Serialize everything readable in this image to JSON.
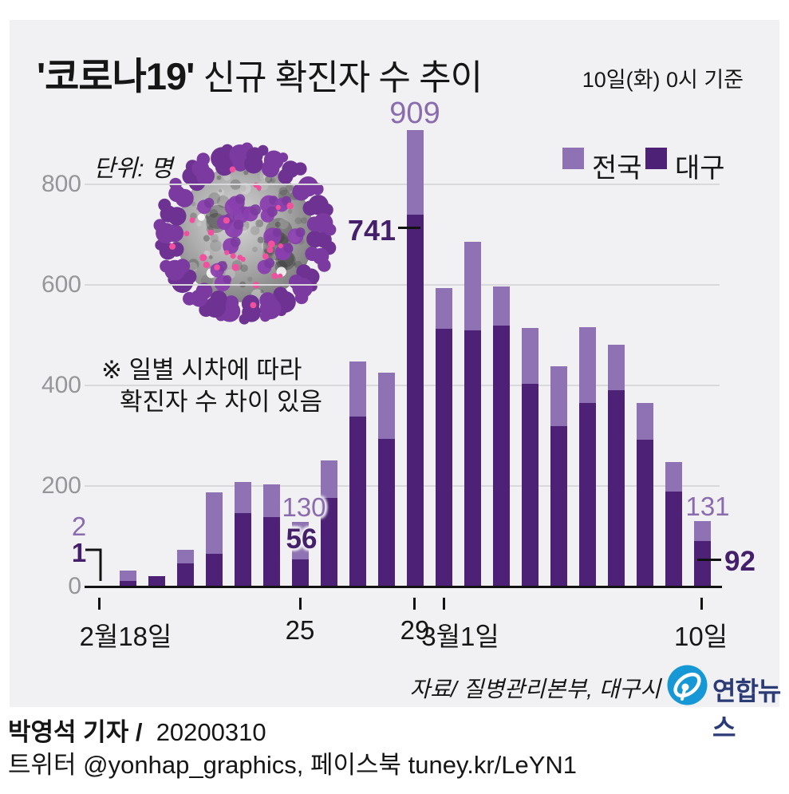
{
  "header": {
    "title_quoted": "'코로나19'",
    "title_rest": " 신규 확진자 수 추이",
    "subtitle": "10일(화) 0시 기준"
  },
  "unit_label": "단위: 명",
  "legend": [
    {
      "label": "전국",
      "color": "#8f72b4"
    },
    {
      "label": "대구",
      "color": "#4c2176"
    }
  ],
  "note": {
    "line1": "※ 일별 시차에 따라",
    "line2": "확진자 수 차이 있음"
  },
  "axis": {
    "y_labels": [
      "0",
      "200",
      "400",
      "600",
      "800"
    ],
    "x_labels": [
      "2월18일",
      "25",
      "29",
      "3월1일",
      "10일"
    ]
  },
  "chart_data": {
    "type": "bar",
    "subtype": "stacked-overlay",
    "title": "'코로나19' 신규 확진자 수 추이",
    "unit": "명",
    "categories": [
      "2/18",
      "2/19",
      "2/20",
      "2/21",
      "2/22",
      "2/23",
      "2/24",
      "2/25",
      "2/26",
      "2/27",
      "2/28",
      "2/29",
      "3/1",
      "3/2",
      "3/3",
      "3/4",
      "3/5",
      "3/6",
      "3/7",
      "3/8",
      "3/9",
      "3/10"
    ],
    "series": [
      {
        "name": "전국",
        "color": "#8f72b4",
        "note": "total bar height = nationwide new cases",
        "values": [
          2,
          34,
          23,
          74,
          189,
          210,
          205,
          130,
          253,
          449,
          427,
          909,
          595,
          687,
          599,
          516,
          440,
          518,
          483,
          367,
          249,
          131
        ]
      },
      {
        "name": "대구",
        "color": "#4c2176",
        "note": "dark lower segment = Daegu portion",
        "values": [
          1,
          13,
          23,
          47,
          66,
          147,
          139,
          56,
          178,
          339,
          296,
          741,
          514,
          511,
          520,
          405,
          321,
          367,
          392,
          294,
          190,
          92
        ]
      }
    ],
    "ylim": [
      0,
      950
    ],
    "y_ticks": [
      0,
      200,
      400,
      600,
      800
    ],
    "grid": true,
    "legend_position": "top-right",
    "x_tick_positions": [
      {
        "label": "2월18일",
        "index": 0
      },
      {
        "label": "25",
        "index": 7
      },
      {
        "label": "29",
        "index": 11
      },
      {
        "label": "3월1일",
        "index": 12
      },
      {
        "label": "10일",
        "index": 21
      }
    ],
    "value_labels": [
      {
        "date": "2월18일",
        "national": "2",
        "daegu": "1"
      },
      {
        "date": "2월25일",
        "national": "130",
        "daegu": "56"
      },
      {
        "date": "2월29일",
        "national": "909",
        "daegu": "741"
      },
      {
        "date": "3월10일",
        "national": "131",
        "daegu": "92"
      }
    ]
  },
  "source": "자료/  질병관리본부, 대구시",
  "logo": {
    "text": "연합뉴스",
    "color": "#1798d6"
  },
  "footer": {
    "byline_bold": "박영석 기자 /",
    "byline_date": "20200310",
    "social": "트위터 @yonhap_graphics, 페이스북 tuney.kr/LeYN1"
  }
}
